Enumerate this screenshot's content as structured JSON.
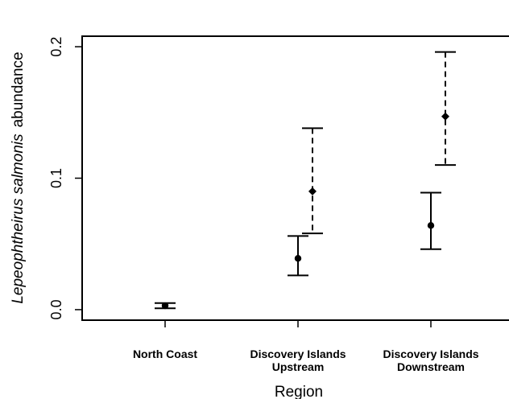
{
  "chart_data": {
    "type": "scatter",
    "xlabel": "Region",
    "ylabel": {
      "italic_part": "Lepeophtheirus salmonis",
      "plain_part": "abundance"
    },
    "yticks": [
      "0.0",
      "0.1",
      "0.2"
    ],
    "ytick_values": [
      0.0,
      0.1,
      0.2
    ],
    "ylim": [
      -0.008,
      0.208
    ],
    "categories": [
      {
        "line1": "North Coast",
        "line2": ""
      },
      {
        "line1": "Discovery Islands",
        "line2": "Upstream"
      },
      {
        "line1": "Discovery Islands",
        "line2": "Downstream"
      }
    ],
    "series": [
      {
        "marker": "circle",
        "line_style": "solid",
        "values": [
          0.003,
          0.039,
          0.064
        ],
        "lower": [
          0.001,
          0.026,
          0.046
        ],
        "upper": [
          0.005,
          0.056,
          0.089
        ]
      },
      {
        "marker": "diamond",
        "line_style": "dashed",
        "values": [
          null,
          0.09,
          0.147
        ],
        "lower": [
          null,
          0.058,
          0.11
        ],
        "upper": [
          null,
          0.138,
          0.196
        ]
      }
    ],
    "grid": false,
    "legend": "none",
    "color": "#000000"
  }
}
